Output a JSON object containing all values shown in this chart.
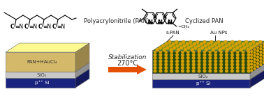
{
  "bg_color": "#ffffff",
  "arrow_color": "#E55000",
  "arrow_text_line1": "Stabilization",
  "arrow_text_line2": "270°C",
  "left_label_top": "PAN+HAuCl₄",
  "left_label_mid": "SiO₂",
  "left_label_bot": "p⁺⁺ Si",
  "right_label_spPAN": "s-PAN",
  "right_label_AuNPs": "Au NPs",
  "right_label_SiO2": "SiO₂",
  "right_label_Si": "p⁺⁺ Si",
  "bottom_left_label": "Polyacrylonitrile (PAN)",
  "bottom_right_label": "Cyclized PAN",
  "layer_PAN_color": "#D4B96A",
  "layer_SiO2_color": "#C8C8C8",
  "layer_Si_color": "#1A237E",
  "layer_spPAN_dark": "#2A4A10",
  "layer_spPAN_mid": "#3A6015",
  "layer_spPAN_light": "#5A8A25",
  "layer_AuNPs_color": "#D4A000",
  "text_color": "#222222"
}
